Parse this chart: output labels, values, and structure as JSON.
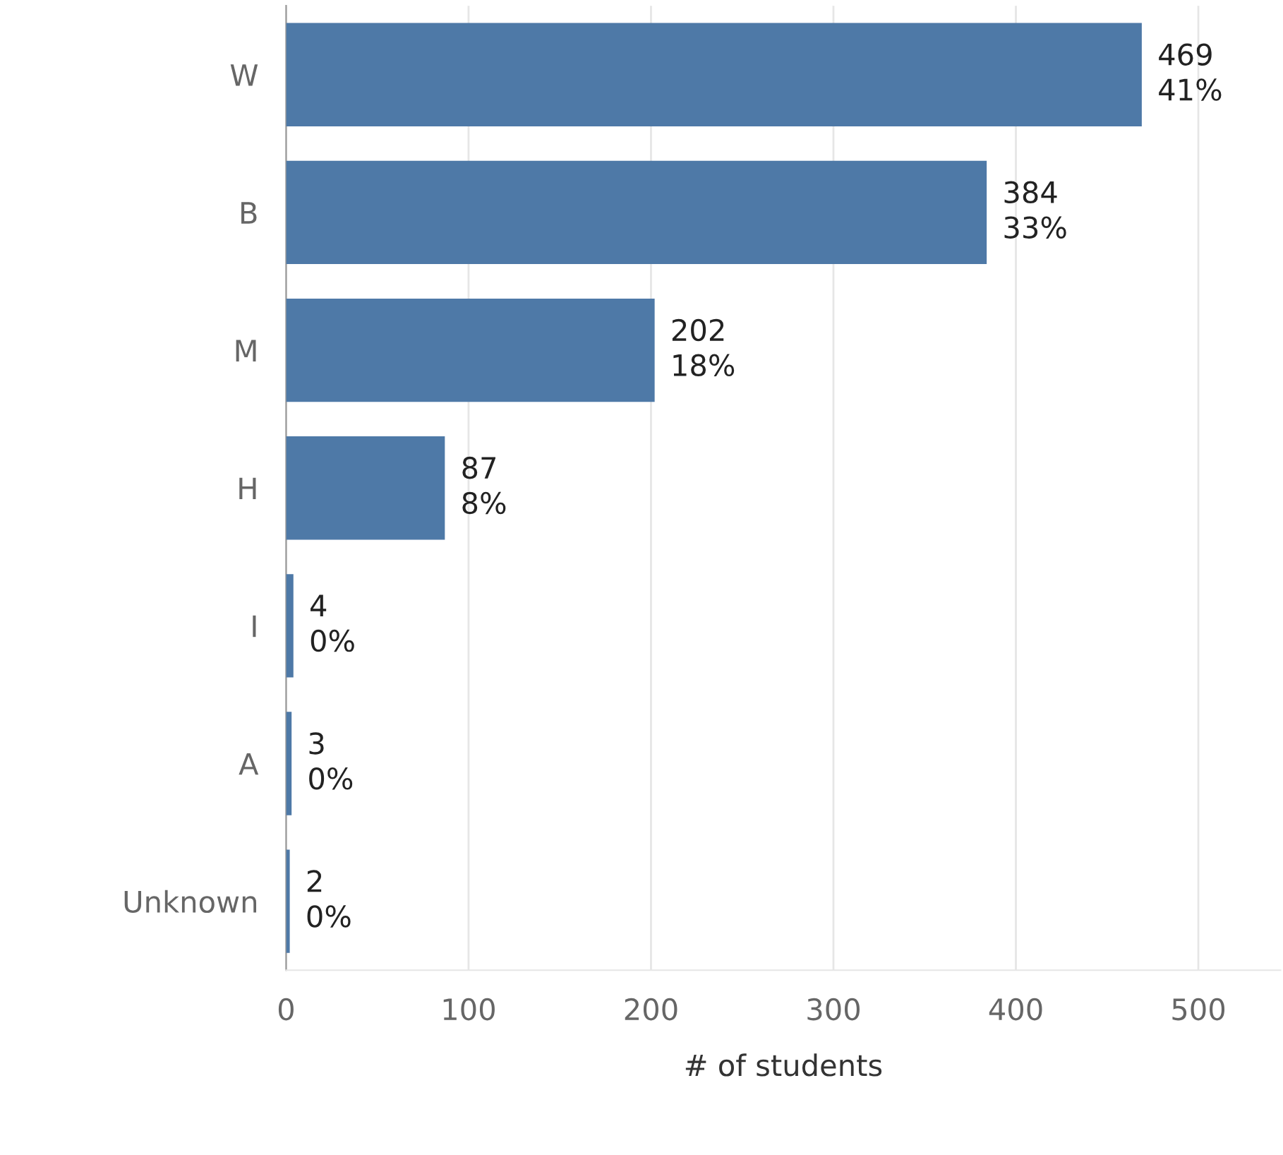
{
  "chart_data": {
    "type": "bar",
    "orientation": "horizontal",
    "xlabel": "# of students",
    "categories": [
      "W",
      "B",
      "M",
      "H",
      "I",
      "A",
      "Unknown"
    ],
    "values": [
      469,
      384,
      202,
      87,
      4,
      3,
      2
    ],
    "value_labels": [
      "469\n41%",
      "384\n33%",
      "202\n18%",
      "87\n8%",
      "4\n0%",
      "3\n0%",
      "2\n0%"
    ],
    "color": "#4e79a7",
    "xlim": [
      0,
      545
    ],
    "xticks": [
      0,
      100,
      200,
      300,
      400,
      500
    ],
    "grid": "x"
  }
}
